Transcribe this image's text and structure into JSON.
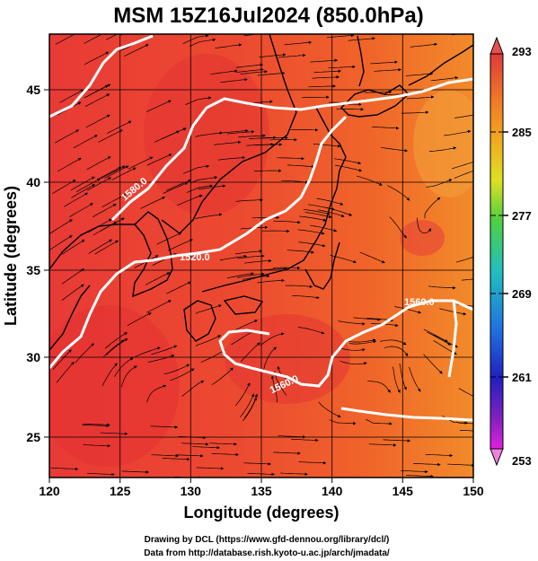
{
  "title": "MSM 15Z16Jul2024 (850.0hPa)",
  "map": {
    "xlabel": "Longitude (degrees)",
    "ylabel": "Latitude  (degrees)",
    "x_ticks": [
      "120",
      "125",
      "130",
      "135",
      "140",
      "145",
      "150"
    ],
    "y_ticks": [
      "45",
      "40",
      "35",
      "30",
      "25"
    ],
    "lon_range": [
      120,
      150
    ],
    "lat_range": [
      22.4,
      47.6
    ],
    "contour_labels": [
      "1580.0",
      "1520.0",
      "1560.0",
      "1560.0"
    ],
    "colors": {
      "field_dark": "#e8302e",
      "field_light": "#f27b2a",
      "contour": "#ffffff",
      "coast": "#000000"
    }
  },
  "colorbar": {
    "ticks": [
      "293",
      "285",
      "277",
      "269",
      "261",
      "253"
    ],
    "range": [
      253,
      293
    ],
    "gradient": [
      "#e03a3a",
      "#f4a020",
      "#e8e020",
      "#40d040",
      "#20c0c0",
      "#2070e0",
      "#2020c0",
      "#8020c0",
      "#e020e0"
    ]
  },
  "credits": {
    "line1": "Drawing by DCL (https://www.gfd-dennou.org/library/dcl/)",
    "line2": "Data from http://database.rish.kyoto-u.ac.jp/arch/jmadata/"
  }
}
